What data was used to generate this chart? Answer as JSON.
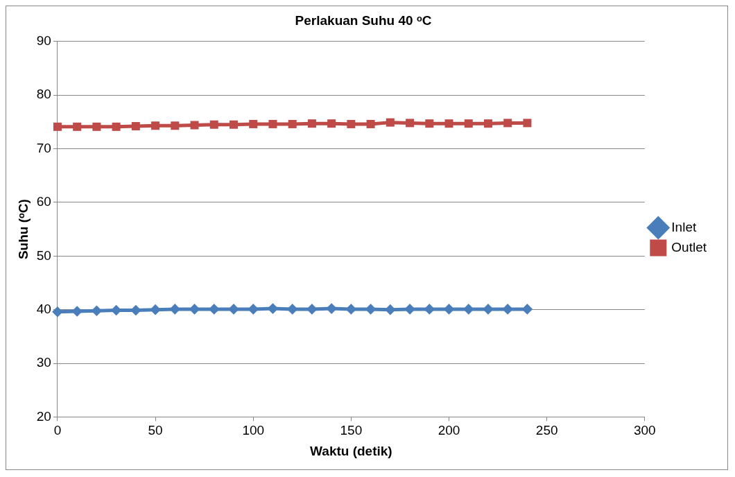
{
  "chart_data": {
    "type": "line",
    "title": "Perlakuan Suhu 40 ᵒC",
    "xlabel": "Waktu (detik)",
    "ylabel": "Suhu (ᵒC)",
    "x": [
      0,
      10,
      20,
      30,
      40,
      50,
      60,
      70,
      80,
      90,
      100,
      110,
      120,
      130,
      140,
      150,
      160,
      170,
      180,
      190,
      200,
      210,
      220,
      230,
      240
    ],
    "series": [
      {
        "name": "Inlet",
        "color": "#4a7ebb",
        "marker": "diamond",
        "values": [
          39.6,
          39.7,
          39.8,
          39.9,
          39.9,
          40.0,
          40.1,
          40.1,
          40.1,
          40.1,
          40.1,
          40.2,
          40.1,
          40.1,
          40.2,
          40.1,
          40.1,
          40.0,
          40.1,
          40.1,
          40.1,
          40.1,
          40.1,
          40.1,
          40.1
        ]
      },
      {
        "name": "Outlet",
        "color": "#be4b48",
        "marker": "square",
        "values": [
          74.1,
          74.1,
          74.1,
          74.1,
          74.2,
          74.3,
          74.3,
          74.4,
          74.5,
          74.5,
          74.6,
          74.6,
          74.6,
          74.7,
          74.7,
          74.6,
          74.6,
          74.9,
          74.8,
          74.7,
          74.7,
          74.7,
          74.7,
          74.8,
          74.8
        ]
      }
    ],
    "xlim": [
      0,
      300
    ],
    "xticks": [
      0,
      50,
      100,
      150,
      200,
      250,
      300
    ],
    "ylim": [
      20,
      90
    ],
    "yticks": [
      20,
      30,
      40,
      50,
      60,
      70,
      80,
      90
    ],
    "grid": "y",
    "legend": "right"
  }
}
